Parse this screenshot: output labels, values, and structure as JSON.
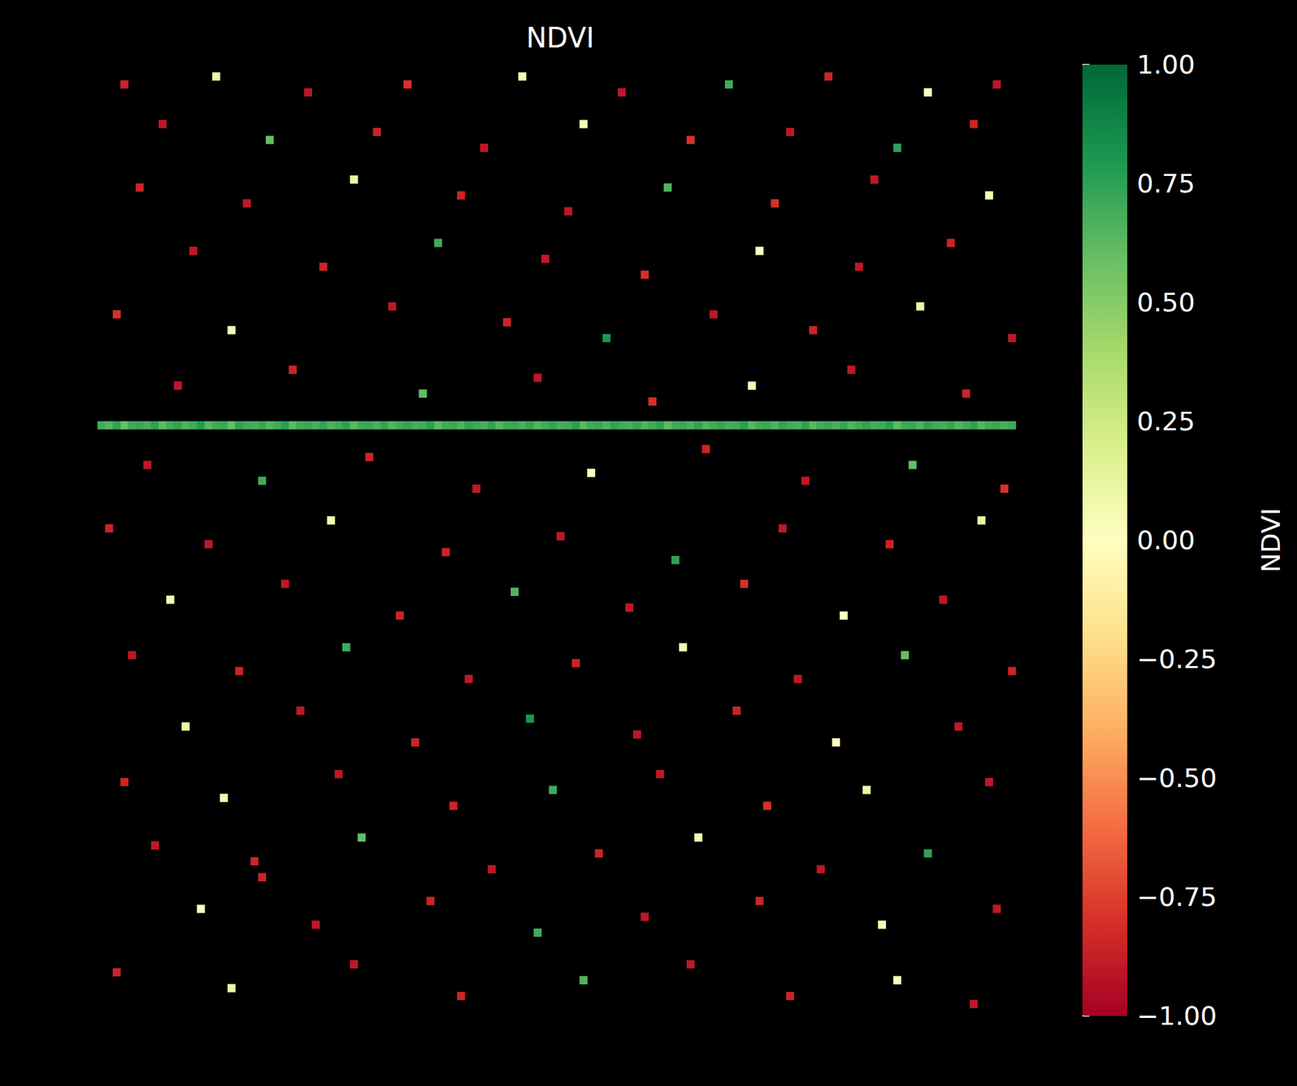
{
  "chart_data": {
    "type": "heatmap",
    "title": "NDVI",
    "tick_labels": false,
    "columns": 120,
    "rows": 120,
    "cells": [
      [
        3,
        2,
        -0.85
      ],
      [
        15,
        1,
        0.1
      ],
      [
        27,
        3,
        -0.9
      ],
      [
        40,
        2,
        -0.8
      ],
      [
        55,
        1,
        0.05
      ],
      [
        68,
        3,
        -0.9
      ],
      [
        82,
        2,
        0.7
      ],
      [
        95,
        1,
        -0.85
      ],
      [
        108,
        3,
        0.0
      ],
      [
        117,
        2,
        -0.9
      ],
      [
        8,
        7,
        -0.9
      ],
      [
        22,
        9,
        0.6
      ],
      [
        36,
        8,
        -0.85
      ],
      [
        50,
        10,
        -0.9
      ],
      [
        63,
        7,
        0.05
      ],
      [
        77,
        9,
        -0.8
      ],
      [
        90,
        8,
        -0.9
      ],
      [
        104,
        10,
        0.75
      ],
      [
        114,
        7,
        -0.85
      ],
      [
        5,
        15,
        -0.85
      ],
      [
        19,
        17,
        -0.9
      ],
      [
        33,
        14,
        0.1
      ],
      [
        47,
        16,
        -0.85
      ],
      [
        61,
        18,
        -0.9
      ],
      [
        74,
        15,
        0.65
      ],
      [
        88,
        17,
        -0.8
      ],
      [
        101,
        14,
        -0.9
      ],
      [
        116,
        16,
        0.05
      ],
      [
        12,
        23,
        -0.9
      ],
      [
        29,
        25,
        -0.85
      ],
      [
        44,
        22,
        0.7
      ],
      [
        58,
        24,
        -0.9
      ],
      [
        71,
        26,
        -0.8
      ],
      [
        86,
        23,
        0.0
      ],
      [
        99,
        25,
        -0.9
      ],
      [
        111,
        22,
        -0.85
      ],
      [
        2,
        31,
        -0.8
      ],
      [
        17,
        33,
        0.05
      ],
      [
        38,
        30,
        -0.9
      ],
      [
        53,
        32,
        -0.85
      ],
      [
        66,
        34,
        0.8
      ],
      [
        80,
        31,
        -0.9
      ],
      [
        93,
        33,
        -0.85
      ],
      [
        107,
        30,
        0.1
      ],
      [
        119,
        34,
        -0.9
      ],
      [
        10,
        40,
        -0.9
      ],
      [
        25,
        38,
        -0.85
      ],
      [
        42,
        41,
        0.6
      ],
      [
        57,
        39,
        -0.9
      ],
      [
        72,
        42,
        -0.8
      ],
      [
        85,
        40,
        0.05
      ],
      [
        98,
        38,
        -0.9
      ],
      [
        113,
        41,
        -0.85
      ],
      [
        6,
        50,
        -0.9
      ],
      [
        21,
        52,
        0.7
      ],
      [
        35,
        49,
        -0.85
      ],
      [
        49,
        53,
        -0.9
      ],
      [
        64,
        51,
        0.0
      ],
      [
        79,
        48,
        -0.85
      ],
      [
        92,
        52,
        -0.9
      ],
      [
        106,
        50,
        0.6
      ],
      [
        118,
        53,
        -0.8
      ],
      [
        1,
        58,
        -0.85
      ],
      [
        14,
        60,
        -0.9
      ],
      [
        30,
        57,
        0.05
      ],
      [
        45,
        61,
        -0.85
      ],
      [
        60,
        59,
        -0.9
      ],
      [
        75,
        62,
        0.75
      ],
      [
        89,
        58,
        -0.9
      ],
      [
        103,
        60,
        -0.85
      ],
      [
        115,
        57,
        0.1
      ],
      [
        9,
        67,
        0.05
      ],
      [
        24,
        65,
        -0.9
      ],
      [
        39,
        69,
        -0.85
      ],
      [
        54,
        66,
        0.65
      ],
      [
        69,
        68,
        -0.9
      ],
      [
        84,
        65,
        -0.8
      ],
      [
        97,
        69,
        0.0
      ],
      [
        110,
        67,
        -0.9
      ],
      [
        4,
        74,
        -0.9
      ],
      [
        18,
        76,
        -0.85
      ],
      [
        32,
        73,
        0.7
      ],
      [
        48,
        77,
        -0.9
      ],
      [
        62,
        75,
        -0.85
      ],
      [
        76,
        73,
        0.05
      ],
      [
        91,
        77,
        -0.9
      ],
      [
        105,
        74,
        0.6
      ],
      [
        119,
        76,
        -0.85
      ],
      [
        11,
        83,
        0.1
      ],
      [
        26,
        81,
        -0.9
      ],
      [
        41,
        85,
        -0.85
      ],
      [
        56,
        82,
        0.8
      ],
      [
        70,
        84,
        -0.9
      ],
      [
        83,
        81,
        -0.85
      ],
      [
        96,
        85,
        0.0
      ],
      [
        112,
        83,
        -0.9
      ],
      [
        3,
        90,
        -0.85
      ],
      [
        16,
        92,
        0.05
      ],
      [
        31,
        89,
        -0.9
      ],
      [
        46,
        93,
        -0.85
      ],
      [
        59,
        91,
        0.7
      ],
      [
        73,
        89,
        -0.9
      ],
      [
        87,
        93,
        -0.8
      ],
      [
        100,
        91,
        0.1
      ],
      [
        116,
        90,
        -0.9
      ],
      [
        7,
        98,
        -0.9
      ],
      [
        20,
        100,
        -0.85
      ],
      [
        34,
        97,
        0.6
      ],
      [
        51,
        101,
        -0.9
      ],
      [
        65,
        99,
        -0.85
      ],
      [
        78,
        97,
        0.05
      ],
      [
        94,
        101,
        -0.9
      ],
      [
        108,
        99,
        0.75
      ],
      [
        21,
        102,
        -0.85
      ],
      [
        13,
        106,
        0.0
      ],
      [
        28,
        108,
        -0.9
      ],
      [
        43,
        105,
        -0.85
      ],
      [
        57,
        109,
        0.7
      ],
      [
        71,
        107,
        -0.9
      ],
      [
        86,
        105,
        -0.85
      ],
      [
        102,
        108,
        0.05
      ],
      [
        117,
        106,
        -0.9
      ],
      [
        2,
        114,
        -0.85
      ],
      [
        17,
        116,
        0.1
      ],
      [
        33,
        113,
        -0.9
      ],
      [
        47,
        117,
        -0.85
      ],
      [
        63,
        115,
        0.65
      ],
      [
        77,
        113,
        -0.9
      ],
      [
        90,
        117,
        -0.85
      ],
      [
        104,
        115,
        0.0
      ],
      [
        114,
        118,
        -0.9
      ]
    ],
    "line": {
      "row": 45,
      "values": [
        0.7,
        0.65,
        0.75,
        0.6,
        0.7,
        0.72,
        0.68,
        0.75,
        0.62,
        0.7,
        0.74,
        0.66,
        0.7,
        0.78,
        0.64,
        0.7,
        0.72,
        0.6,
        0.75,
        0.7,
        0.68,
        0.73,
        0.65,
        0.7,
        0.76,
        0.62,
        0.7,
        0.72,
        0.68,
        0.74,
        0.66,
        0.7,
        0.75,
        0.63,
        0.7,
        0.72,
        0.67,
        0.74,
        0.65,
        0.7,
        0.73,
        0.68,
        0.7,
        0.76,
        0.62,
        0.7,
        0.72,
        0.66,
        0.74,
        0.7,
        0.68,
        0.75,
        0.64,
        0.7,
        0.72,
        0.67,
        0.73,
        0.65,
        0.7,
        0.74,
        0.68,
        0.7,
        0.76,
        0.63,
        0.7,
        0.72,
        0.66,
        0.74,
        0.7,
        0.68,
        0.73,
        0.65,
        0.7,
        0.75,
        0.62,
        0.7,
        0.72,
        0.67,
        0.74,
        0.66,
        0.7,
        0.73,
        0.68,
        0.7,
        0.76,
        0.64,
        0.7,
        0.72,
        0.66,
        0.74,
        0.7,
        0.68,
        0.75,
        0.63,
        0.7,
        0.72,
        0.67,
        0.73,
        0.65,
        0.7,
        0.74,
        0.68,
        0.7,
        0.76,
        0.62,
        0.7,
        0.72,
        0.66,
        0.74,
        0.7,
        0.68,
        0.73,
        0.65,
        0.7,
        0.75,
        0.64,
        0.7,
        0.72,
        0.67,
        0.7
      ]
    },
    "colorbar": {
      "label": "NDVI",
      "range": [
        -1,
        1
      ],
      "ticks": [
        {
          "value": -1,
          "label": "−1.00"
        },
        {
          "value": -0.75,
          "label": "−0.75"
        },
        {
          "value": -0.5,
          "label": "−0.50"
        },
        {
          "value": -0.25,
          "label": "−0.25"
        },
        {
          "value": 0,
          "label": "0.00"
        },
        {
          "value": 0.25,
          "label": "0.25"
        },
        {
          "value": 0.5,
          "label": "0.50"
        },
        {
          "value": 0.75,
          "label": "0.75"
        },
        {
          "value": 1,
          "label": "1.00"
        }
      ]
    }
  }
}
